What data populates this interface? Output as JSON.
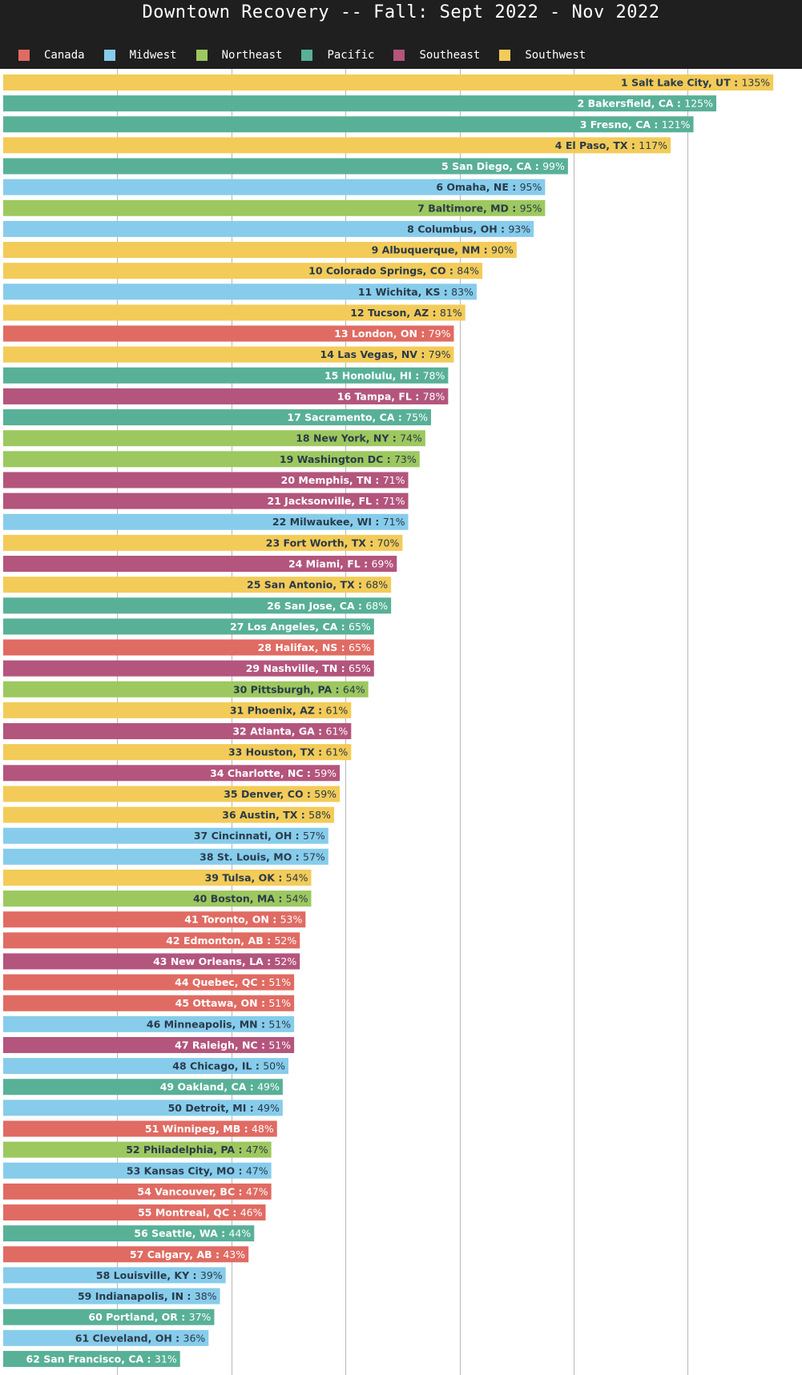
{
  "header": {
    "title": "Downtown Recovery -- Fall: Sept 2022 - Nov 2022"
  },
  "legend": [
    {
      "label": "Canada",
      "color": "#e06b63"
    },
    {
      "label": "Midwest",
      "color": "#87cceb"
    },
    {
      "label": "Northeast",
      "color": "#9dc85f"
    },
    {
      "label": "Pacific",
      "color": "#58b097"
    },
    {
      "label": "Southeast",
      "color": "#b3557c"
    },
    {
      "label": "Southwest",
      "color": "#f3cb58"
    }
  ],
  "chart_data": {
    "type": "bar",
    "orientation": "horizontal",
    "title": "Downtown Recovery -- Fall: Sept 2022 - Nov 2022",
    "xlim": [
      0,
      140
    ],
    "grid": true,
    "legend_position": "top",
    "value_suffix": "%",
    "region_colors": {
      "Canada": "#e06b63",
      "Midwest": "#87cceb",
      "Northeast": "#9dc85f",
      "Pacific": "#58b097",
      "Southeast": "#b3557c",
      "Southwest": "#f3cb58"
    },
    "bars": [
      {
        "rank": 1,
        "city": "Salt Lake City, UT",
        "region": "Southwest",
        "value": 135
      },
      {
        "rank": 2,
        "city": "Bakersfield, CA",
        "region": "Pacific",
        "value": 125
      },
      {
        "rank": 3,
        "city": "Fresno, CA",
        "region": "Pacific",
        "value": 121
      },
      {
        "rank": 4,
        "city": "El Paso, TX",
        "region": "Southwest",
        "value": 117
      },
      {
        "rank": 5,
        "city": "San Diego, CA",
        "region": "Pacific",
        "value": 99
      },
      {
        "rank": 6,
        "city": "Omaha, NE",
        "region": "Midwest",
        "value": 95
      },
      {
        "rank": 7,
        "city": "Baltimore, MD",
        "region": "Northeast",
        "value": 95
      },
      {
        "rank": 8,
        "city": "Columbus, OH",
        "region": "Midwest",
        "value": 93
      },
      {
        "rank": 9,
        "city": "Albuquerque, NM",
        "region": "Southwest",
        "value": 90
      },
      {
        "rank": 10,
        "city": "Colorado Springs, CO",
        "region": "Southwest",
        "value": 84
      },
      {
        "rank": 11,
        "city": "Wichita, KS",
        "region": "Midwest",
        "value": 83
      },
      {
        "rank": 12,
        "city": "Tucson, AZ",
        "region": "Southwest",
        "value": 81
      },
      {
        "rank": 13,
        "city": "London, ON",
        "region": "Canada",
        "value": 79
      },
      {
        "rank": 14,
        "city": "Las Vegas, NV",
        "region": "Southwest",
        "value": 79
      },
      {
        "rank": 15,
        "city": "Honolulu, HI",
        "region": "Pacific",
        "value": 78
      },
      {
        "rank": 16,
        "city": "Tampa, FL",
        "region": "Southeast",
        "value": 78
      },
      {
        "rank": 17,
        "city": "Sacramento, CA",
        "region": "Pacific",
        "value": 75
      },
      {
        "rank": 18,
        "city": "New York, NY",
        "region": "Northeast",
        "value": 74
      },
      {
        "rank": 19,
        "city": "Washington DC",
        "region": "Northeast",
        "value": 73
      },
      {
        "rank": 20,
        "city": "Memphis, TN",
        "region": "Southeast",
        "value": 71
      },
      {
        "rank": 21,
        "city": "Jacksonville, FL",
        "region": "Southeast",
        "value": 71
      },
      {
        "rank": 22,
        "city": "Milwaukee, WI",
        "region": "Midwest",
        "value": 71
      },
      {
        "rank": 23,
        "city": "Fort Worth, TX",
        "region": "Southwest",
        "value": 70
      },
      {
        "rank": 24,
        "city": "Miami, FL",
        "region": "Southeast",
        "value": 69
      },
      {
        "rank": 25,
        "city": "San Antonio, TX",
        "region": "Southwest",
        "value": 68
      },
      {
        "rank": 26,
        "city": "San Jose, CA",
        "region": "Pacific",
        "value": 68
      },
      {
        "rank": 27,
        "city": "Los Angeles, CA",
        "region": "Pacific",
        "value": 65
      },
      {
        "rank": 28,
        "city": "Halifax, NS",
        "region": "Canada",
        "value": 65
      },
      {
        "rank": 29,
        "city": "Nashville, TN",
        "region": "Southeast",
        "value": 65
      },
      {
        "rank": 30,
        "city": "Pittsburgh, PA",
        "region": "Northeast",
        "value": 64
      },
      {
        "rank": 31,
        "city": "Phoenix, AZ",
        "region": "Southwest",
        "value": 61
      },
      {
        "rank": 32,
        "city": "Atlanta, GA",
        "region": "Southeast",
        "value": 61
      },
      {
        "rank": 33,
        "city": "Houston, TX",
        "region": "Southwest",
        "value": 61
      },
      {
        "rank": 34,
        "city": "Charlotte, NC",
        "region": "Southeast",
        "value": 59
      },
      {
        "rank": 35,
        "city": "Denver, CO",
        "region": "Southwest",
        "value": 59
      },
      {
        "rank": 36,
        "city": "Austin, TX",
        "region": "Southwest",
        "value": 58
      },
      {
        "rank": 37,
        "city": "Cincinnati, OH",
        "region": "Midwest",
        "value": 57
      },
      {
        "rank": 38,
        "city": "St. Louis, MO",
        "region": "Midwest",
        "value": 57
      },
      {
        "rank": 39,
        "city": "Tulsa, OK",
        "region": "Southwest",
        "value": 54
      },
      {
        "rank": 40,
        "city": "Boston, MA",
        "region": "Northeast",
        "value": 54
      },
      {
        "rank": 41,
        "city": "Toronto, ON",
        "region": "Canada",
        "value": 53
      },
      {
        "rank": 42,
        "city": "Edmonton, AB",
        "region": "Canada",
        "value": 52
      },
      {
        "rank": 43,
        "city": "New Orleans, LA",
        "region": "Southeast",
        "value": 52
      },
      {
        "rank": 44,
        "city": "Quebec, QC",
        "region": "Canada",
        "value": 51
      },
      {
        "rank": 45,
        "city": "Ottawa, ON",
        "region": "Canada",
        "value": 51
      },
      {
        "rank": 46,
        "city": "Minneapolis, MN",
        "region": "Midwest",
        "value": 51
      },
      {
        "rank": 47,
        "city": "Raleigh, NC",
        "region": "Southeast",
        "value": 51
      },
      {
        "rank": 48,
        "city": "Chicago, IL",
        "region": "Midwest",
        "value": 50
      },
      {
        "rank": 49,
        "city": "Oakland, CA",
        "region": "Pacific",
        "value": 49
      },
      {
        "rank": 50,
        "city": "Detroit, MI",
        "region": "Midwest",
        "value": 49
      },
      {
        "rank": 51,
        "city": "Winnipeg, MB",
        "region": "Canada",
        "value": 48
      },
      {
        "rank": 52,
        "city": "Philadelphia, PA",
        "region": "Northeast",
        "value": 47
      },
      {
        "rank": 53,
        "city": "Kansas City, MO",
        "region": "Midwest",
        "value": 47
      },
      {
        "rank": 54,
        "city": "Vancouver, BC",
        "region": "Canada",
        "value": 47
      },
      {
        "rank": 55,
        "city": "Montreal, QC",
        "region": "Canada",
        "value": 46
      },
      {
        "rank": 56,
        "city": "Seattle, WA",
        "region": "Pacific",
        "value": 44
      },
      {
        "rank": 57,
        "city": "Calgary, AB",
        "region": "Canada",
        "value": 43
      },
      {
        "rank": 58,
        "city": "Louisville, KY",
        "region": "Midwest",
        "value": 39
      },
      {
        "rank": 59,
        "city": "Indianapolis, IN",
        "region": "Midwest",
        "value": 38
      },
      {
        "rank": 60,
        "city": "Portland, OR",
        "region": "Pacific",
        "value": 37
      },
      {
        "rank": 61,
        "city": "Cleveland, OH",
        "region": "Midwest",
        "value": 36
      },
      {
        "rank": 62,
        "city": "San Francisco, CA",
        "region": "Pacific",
        "value": 31
      }
    ]
  }
}
